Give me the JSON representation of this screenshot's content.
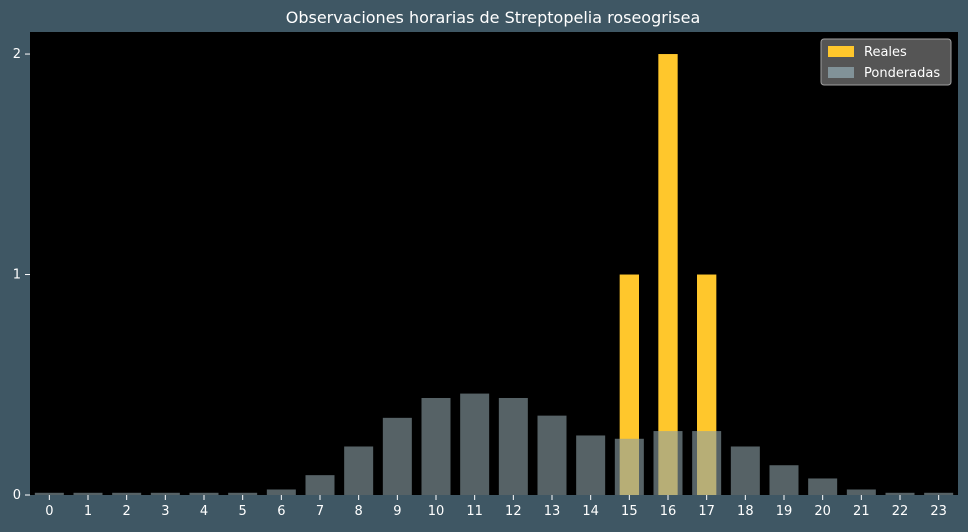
{
  "chart_data": {
    "type": "bar",
    "title": "Observaciones horarias de Streptopelia roseogrisea",
    "xlabel": "",
    "ylabel": "",
    "categories": [
      "0",
      "1",
      "2",
      "3",
      "4",
      "5",
      "6",
      "7",
      "8",
      "9",
      "10",
      "11",
      "12",
      "13",
      "14",
      "15",
      "16",
      "17",
      "18",
      "19",
      "20",
      "21",
      "22",
      "23"
    ],
    "ylim": [
      0,
      2.1
    ],
    "yticks": [
      0,
      1,
      2
    ],
    "grid": false,
    "legend_position": "top-right",
    "series": [
      {
        "name": "Reales",
        "color": "#ffc72c",
        "values": [
          0,
          0,
          0,
          0,
          0,
          0,
          0,
          0,
          0,
          0,
          0,
          0,
          0,
          0,
          0,
          1,
          2,
          1,
          0,
          0,
          0,
          0,
          0,
          0
        ]
      },
      {
        "name": "Ponderadas",
        "color": "#8a9ea4",
        "values": [
          0.01,
          0.01,
          0.01,
          0.01,
          0.01,
          0.01,
          0.025,
          0.09,
          0.22,
          0.35,
          0.44,
          0.46,
          0.44,
          0.36,
          0.27,
          0.255,
          0.29,
          0.29,
          0.22,
          0.135,
          0.075,
          0.025,
          0.01,
          0.01
        ]
      }
    ]
  }
}
